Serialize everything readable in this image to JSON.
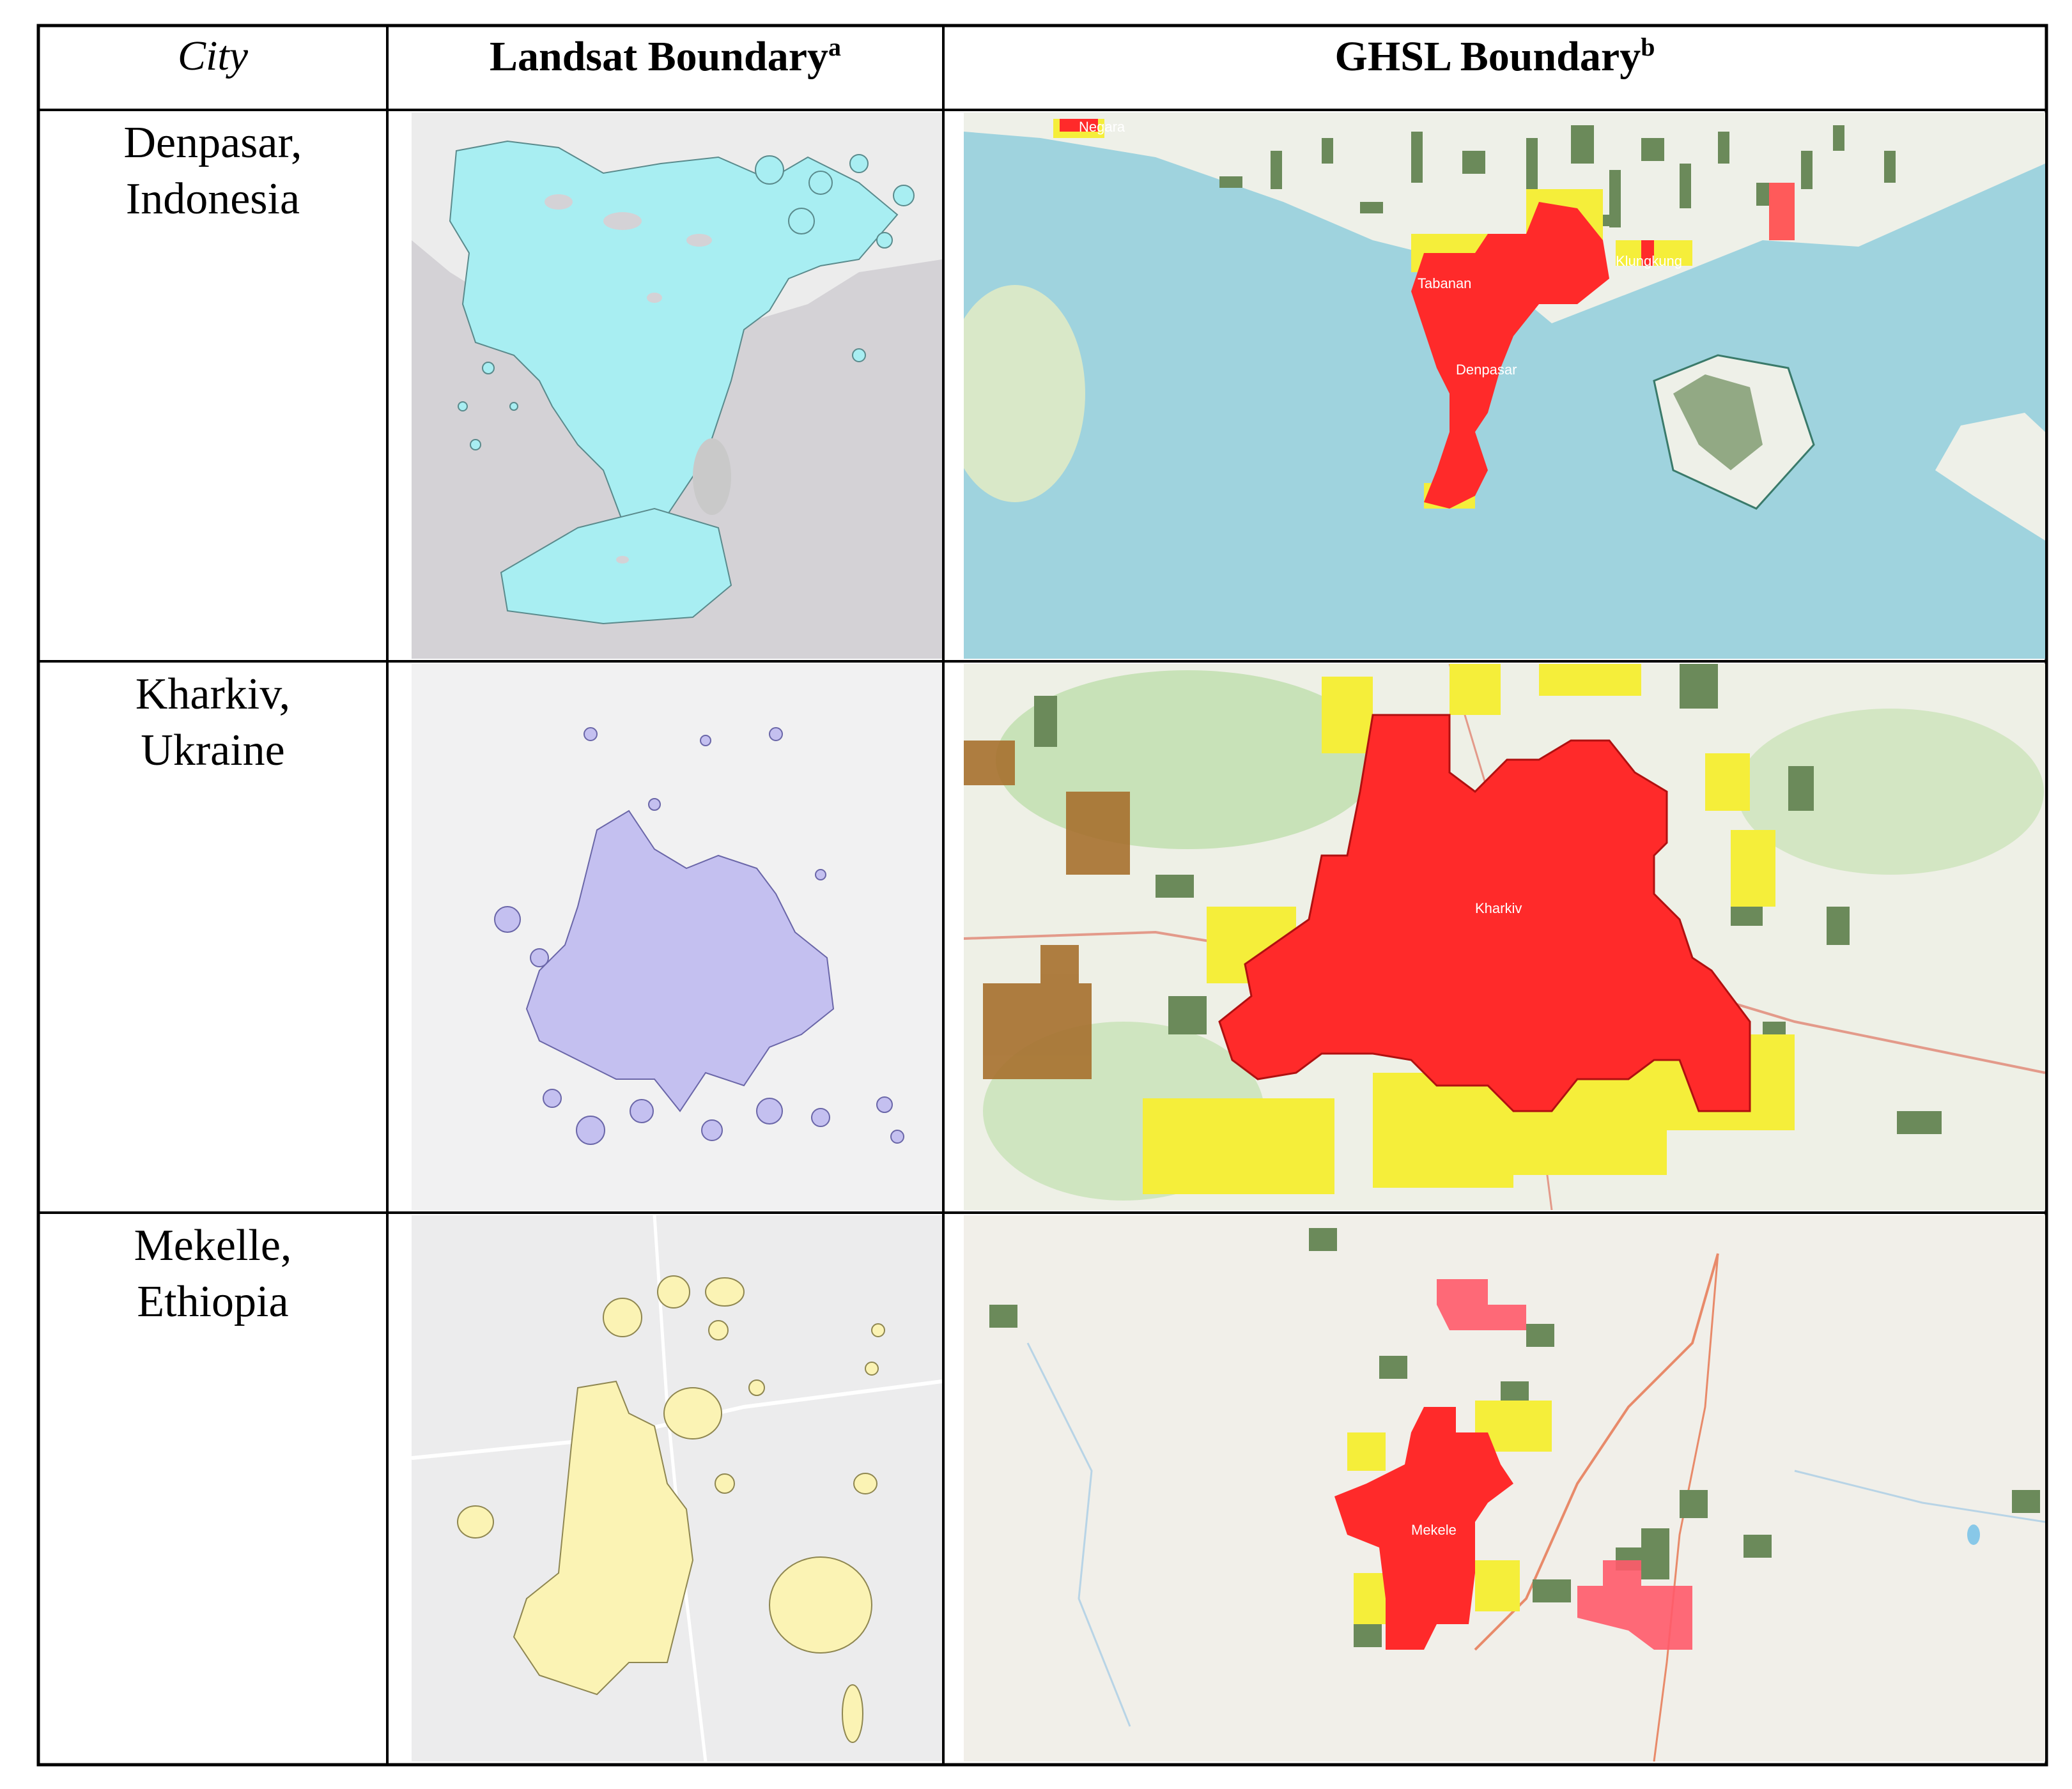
{
  "table": {
    "headers": {
      "city": "City",
      "landsat": "Landsat Boundary",
      "landsat_sup": "a",
      "ghsl": "GHSL Boundary",
      "ghsl_sup": "b"
    },
    "rows": [
      {
        "city_line1": "Denpasar,",
        "city_line2": "Indonesia",
        "map_labels": [
          "Negara",
          "Tabanan",
          "Klungkung",
          "Denpasar"
        ],
        "landsat_color": "#a8eef2"
      },
      {
        "city_line1": "Kharkiv,",
        "city_line2": "Ukraine",
        "map_labels": [
          "Kharkiv"
        ],
        "landsat_color": "#c4c0f0"
      },
      {
        "city_line1": "Mekelle,",
        "city_line2": "Ethiopia",
        "map_labels": [
          "Mekele"
        ],
        "landsat_color": "#fbf3b4"
      }
    ]
  },
  "colors": {
    "border": "#000000",
    "urban_core": "#ff2a2a",
    "urban_fringe": "#f5ee3a",
    "rural_cluster": "#6b8a5a",
    "sea": "#9fd3de"
  }
}
